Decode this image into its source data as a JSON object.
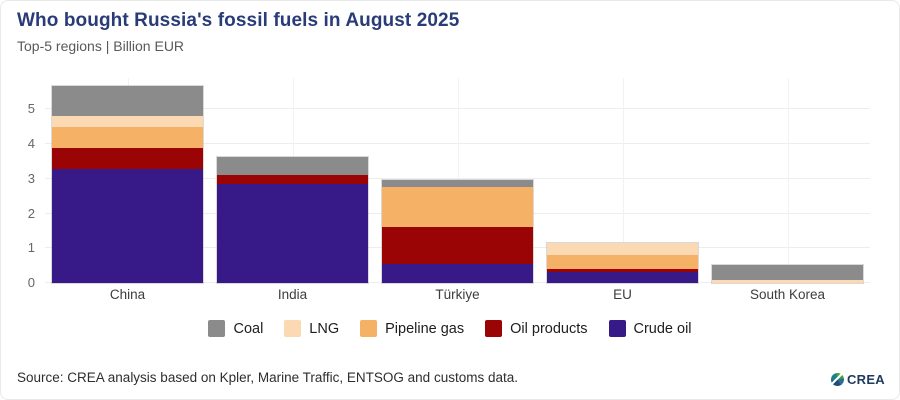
{
  "header": {
    "title": "Who bought Russia's fossil fuels in August 2025",
    "subtitle": "Top-5 regions | Billion EUR"
  },
  "chart_data": {
    "type": "bar",
    "stacked": true,
    "title": "Who bought Russia's fossil fuels in August 2025",
    "subtitle": "Top-5 regions | Billion EUR",
    "categories": [
      "China",
      "India",
      "Türkiye",
      "EU",
      "South Korea"
    ],
    "series": [
      {
        "name": "Crude oil",
        "color": "#371a87",
        "values": [
          3.27,
          2.84,
          0.56,
          0.32,
          0
        ]
      },
      {
        "name": "Oil products",
        "color": "#9b0404",
        "values": [
          0.61,
          0.27,
          1.05,
          0.09,
          0
        ]
      },
      {
        "name": "Pipeline gas",
        "color": "#f5b266",
        "values": [
          0.62,
          0,
          1.16,
          0.4,
          0
        ]
      },
      {
        "name": "LNG",
        "color": "#fad9b3",
        "values": [
          0.32,
          0,
          0,
          0.35,
          0.08
        ]
      },
      {
        "name": "Coal",
        "color": "#8b8b8b",
        "values": [
          0.86,
          0.52,
          0.21,
          0,
          0.45
        ]
      }
    ],
    "totals": [
      5.68,
      3.63,
      2.98,
      1.16,
      0.53
    ],
    "legend": [
      "Coal",
      "LNG",
      "Pipeline gas",
      "Oil products",
      "Crude oil"
    ],
    "legend_position": "bottom",
    "xlabel": "",
    "ylabel": "",
    "yticks": [
      0,
      1,
      2,
      3,
      4,
      5
    ],
    "ylim": [
      0,
      5.9
    ],
    "grid": true
  },
  "colors": {
    "title_text": "#293c78",
    "subtitle_text": "#595959",
    "axis_tick_text": "#666666",
    "gridline": "#ededed"
  },
  "footer": {
    "source": "Source: CREA analysis based on Kpler, Marine Traffic, ENTSOG and customs data.",
    "logo_text": "CREA"
  }
}
